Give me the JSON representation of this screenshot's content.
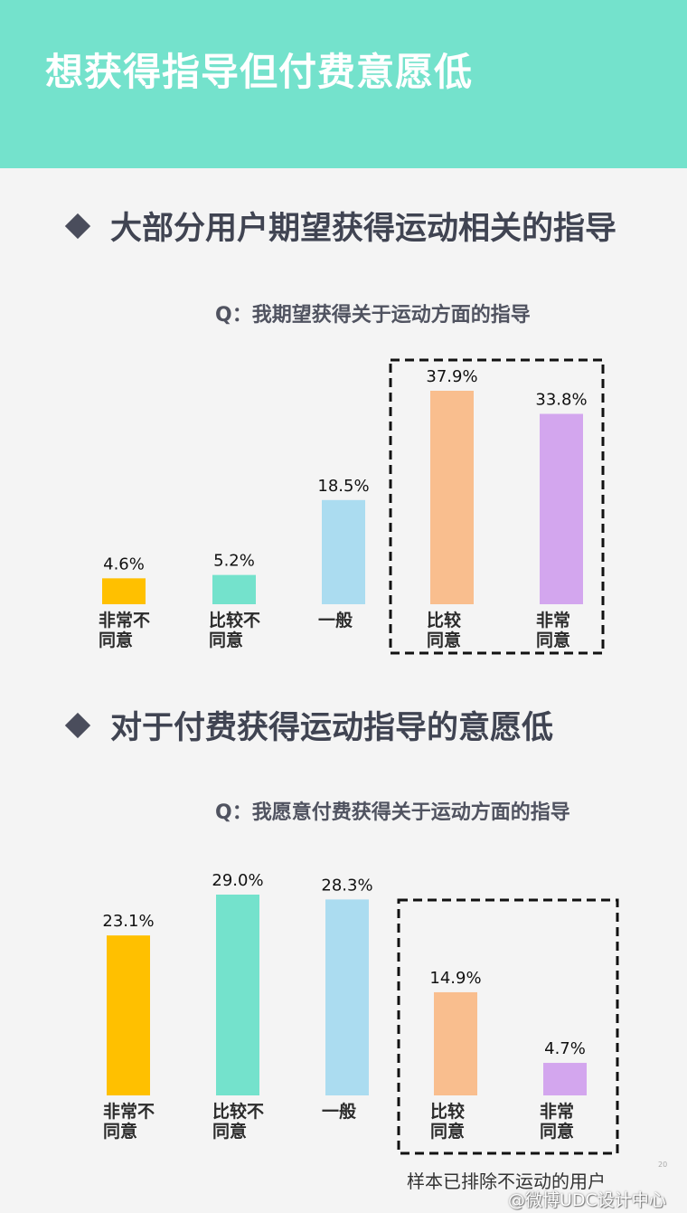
{
  "header": {
    "title": "想获得指导但付费意愿低"
  },
  "sections": [
    {
      "heading": "大部分用户期望获得运动相关的指导",
      "question": "Q：我期望获得关于运动方面的指导"
    },
    {
      "heading": "对于付费获得运动指导的意愿低",
      "question": "Q：我愿意付费获得关于运动方面的指导"
    }
  ],
  "chart_data": [
    {
      "type": "bar",
      "title": "Q：我期望获得关于运动方面的指导",
      "categories": [
        [
          "非常不",
          "同意"
        ],
        [
          "比较不",
          "同意"
        ],
        [
          "一般"
        ],
        [
          "比较",
          "同意"
        ],
        [
          "非常",
          "同意"
        ]
      ],
      "values": [
        4.6,
        5.2,
        18.5,
        37.9,
        33.8
      ],
      "labels": [
        "4.6%",
        "5.2%",
        "18.5%",
        "37.9%",
        "33.8%"
      ],
      "unit": "%",
      "colors": [
        "#ffc000",
        "#74e2cc",
        "#abdcf0",
        "#f9be8e",
        "#d3a6ee"
      ],
      "highlighted": [
        3,
        4
      ],
      "ylim": [
        0,
        37.9
      ]
    },
    {
      "type": "bar",
      "title": "Q：我愿意付费获得关于运动方面的指导",
      "categories": [
        [
          "非常不",
          "同意"
        ],
        [
          "比较不",
          "同意"
        ],
        [
          "一般"
        ],
        [
          "比较",
          "同意"
        ],
        [
          "非常",
          "同意"
        ]
      ],
      "values": [
        23.1,
        29.0,
        28.3,
        14.9,
        4.7
      ],
      "labels": [
        "23.1%",
        "29.0%",
        "28.3%",
        "14.9%",
        "4.7%"
      ],
      "unit": "%",
      "colors": [
        "#ffc000",
        "#74e2cc",
        "#abdcf0",
        "#f9be8e",
        "#d3a6ee"
      ],
      "highlighted": [
        3,
        4
      ],
      "ylim": [
        0,
        29.0
      ]
    }
  ],
  "footnote": "样本已排除不运动的用户",
  "page_number": "20",
  "watermark": "@微博UDC设计中心"
}
